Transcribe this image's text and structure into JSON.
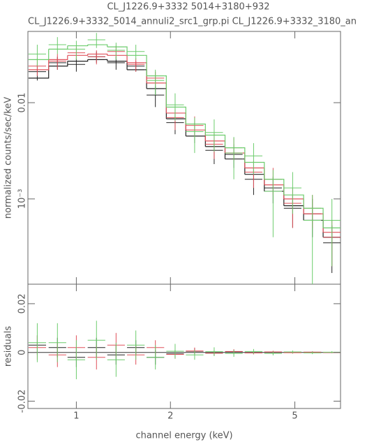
{
  "chart_data": [
    {
      "type": "spectrum",
      "title": "CL_J1226.9+3332 5014+3180+932",
      "subtitle": "CL_J1226.9+3332_5014_annuli2_src1_grp.pi CL_J1226.9+3332_3180_an",
      "y_label": "normalized counts/sec/keV",
      "x": [
        0.75,
        0.87,
        1.0,
        1.16,
        1.34,
        1.55,
        1.79,
        2.07,
        2.39,
        2.76,
        3.19,
        3.69,
        4.26,
        4.92,
        5.69,
        6.57
      ],
      "xlim": [
        0.7,
        7
      ],
      "ylim": [
        0.00013,
        0.055
      ],
      "log_x": true,
      "log_y": true,
      "yticks": [
        0.01,
        {
          "value": 0.001,
          "label": "10⁻³"
        }
      ],
      "series": [
        {
          "color": "#222222",
          "values": [
            0.021,
            0.026,
            0.025,
            0.03,
            0.026,
            0.024,
            0.012,
            0.0062,
            0.005,
            0.0032,
            0.0029,
            0.0016,
            0.0013,
            0.0008,
            0.0007,
            0.00035
          ],
          "errors": [
            0.004,
            0.004,
            0.004,
            0.004,
            0.004,
            0.003,
            0.003,
            0.0015,
            0.0012,
            0.0009,
            0.0008,
            0.0005,
            0.0004,
            0.0003,
            0.0003,
            0.00018
          ],
          "model": [
            0.018,
            0.024,
            0.027,
            0.028,
            0.027,
            0.022,
            0.014,
            0.0068,
            0.0045,
            0.0035,
            0.0026,
            0.0018,
            0.0012,
            0.00085,
            0.0006,
            0.0004
          ]
        },
        {
          "color": "#e0505a",
          "values": [
            0.024,
            0.027,
            0.033,
            0.03,
            0.034,
            0.025,
            0.018,
            0.007,
            0.0058,
            0.0037,
            0.0034,
            0.0019,
            0.0016,
            0.0009,
            0.0008,
            0.0004
          ],
          "errors": [
            0.005,
            0.005,
            0.005,
            0.005,
            0.005,
            0.004,
            0.003,
            0.0018,
            0.0014,
            0.0011,
            0.0009,
            0.0006,
            0.0005,
            0.0004,
            0.0003,
            0.0002
          ],
          "model": [
            0.022,
            0.028,
            0.031,
            0.032,
            0.031,
            0.026,
            0.016,
            0.0078,
            0.0052,
            0.004,
            0.003,
            0.0021,
            0.0014,
            0.001,
            0.0007,
            0.00045
          ]
        },
        {
          "color": "#6ccc6c",
          "values": [
            0.032,
            0.04,
            0.036,
            0.045,
            0.035,
            0.034,
            0.017,
            0.0095,
            0.005,
            0.0049,
            0.003,
            0.0028,
            0.0012,
            0.0013,
            0.0006,
            0.0006
          ],
          "errors": [
            0.008,
            0.008,
            0.008,
            0.008,
            0.007,
            0.006,
            0.005,
            0.003,
            0.002,
            0.0018,
            0.0014,
            0.001,
            0.0008,
            0.0006,
            0.0005,
            0.0004
          ],
          "model": [
            0.028,
            0.036,
            0.039,
            0.04,
            0.038,
            0.031,
            0.019,
            0.009,
            0.006,
            0.0046,
            0.0034,
            0.0024,
            0.0016,
            0.0011,
            0.0008,
            0.0005
          ]
        }
      ]
    },
    {
      "type": "residuals",
      "y_label": "residuals",
      "x_label": "channel energy (keV)",
      "x": [
        0.75,
        0.87,
        1.0,
        1.16,
        1.34,
        1.55,
        1.79,
        2.07,
        2.39,
        2.76,
        3.19,
        3.69,
        4.26,
        4.92,
        5.69,
        6.57
      ],
      "xlim": [
        0.7,
        7
      ],
      "ylim": [
        -0.023,
        0.028
      ],
      "log_x": true,
      "xticks": [
        1,
        2,
        5
      ],
      "yticks": [
        0.02,
        0,
        -0.02
      ],
      "series": [
        {
          "color": "#222222",
          "values": [
            0.003,
            0.002,
            -0.002,
            0.002,
            -0.001,
            0.002,
            -0.002,
            -0.0006,
            0.0005,
            -0.0003,
            0.0003,
            -0.0002,
            0.0001,
            -5e-05,
            0.0001,
            -5e-05
          ],
          "errors": [
            0.004,
            0.004,
            0.004,
            0.004,
            0.004,
            0.003,
            0.003,
            0.0015,
            0.0012,
            0.0009,
            0.0008,
            0.0005,
            0.0004,
            0.0003,
            0.0003,
            0.00018
          ]
        },
        {
          "color": "#e0505a",
          "values": [
            0.002,
            -0.001,
            0.002,
            -0.002,
            0.003,
            -0.001,
            0.002,
            -0.0008,
            0.0006,
            -0.0003,
            0.0004,
            -0.0002,
            0.0002,
            -0.0001,
            0.0001,
            -5e-05
          ],
          "errors": [
            0.005,
            0.005,
            0.005,
            0.005,
            0.005,
            0.004,
            0.003,
            0.0018,
            0.0014,
            0.0011,
            0.0009,
            0.0006,
            0.0005,
            0.0004,
            0.0003,
            0.0002
          ]
        },
        {
          "color": "#6ccc6c",
          "values": [
            0.004,
            0.004,
            -0.003,
            0.005,
            -0.003,
            0.003,
            -0.002,
            0.0005,
            -0.001,
            0.0003,
            -0.0004,
            0.0004,
            -0.0004,
            0.0002,
            -0.0002,
            0.0001
          ],
          "errors": [
            0.008,
            0.008,
            0.008,
            0.008,
            0.007,
            0.006,
            0.005,
            0.003,
            0.002,
            0.0018,
            0.0014,
            0.001,
            0.0008,
            0.0006,
            0.0005,
            0.0004
          ]
        }
      ]
    }
  ]
}
